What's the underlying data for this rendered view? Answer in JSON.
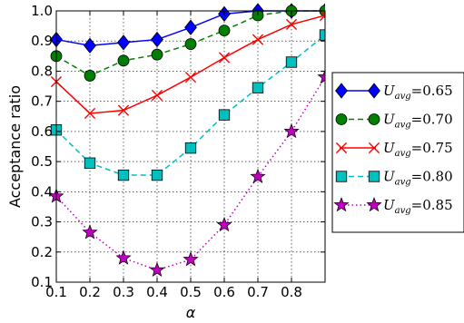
{
  "chart_data": {
    "type": "line",
    "title": "",
    "xlabel": "α",
    "ylabel": "Acceptance ratio",
    "xlim": [
      0.1,
      0.9
    ],
    "ylim": [
      0.1,
      1.0
    ],
    "xticks": [
      "0.1",
      "0.2",
      "0.3",
      "0.4",
      "0.5",
      "0.6",
      "0.7",
      "0.8"
    ],
    "yticks": [
      "0.1",
      "0.2",
      "0.3",
      "0.4",
      "0.5",
      "0.6",
      "0.7",
      "0.8",
      "0.9",
      "1.0"
    ],
    "grid": true,
    "legend_position": "outside-right",
    "x": [
      0.1,
      0.2,
      0.3,
      0.4,
      0.5,
      0.6,
      0.7,
      0.8,
      0.9
    ],
    "series": [
      {
        "name": "U_avg=0.65",
        "legend_base": "U",
        "legend_sub": "avg",
        "legend_value": "=0.65",
        "color": "#0000ff",
        "marker": "diamond",
        "dash": "solid",
        "values": [
          0.905,
          0.885,
          0.895,
          0.905,
          0.945,
          0.99,
          1.0,
          1.0,
          1.0
        ]
      },
      {
        "name": "U_avg=0.70",
        "legend_base": "U",
        "legend_sub": "avg",
        "legend_value": "=0.70",
        "color": "#008000",
        "marker": "circle",
        "dash": "dashed",
        "values": [
          0.85,
          0.785,
          0.835,
          0.855,
          0.89,
          0.935,
          0.985,
          1.0,
          1.0
        ]
      },
      {
        "name": "U_avg=0.75",
        "legend_base": "U",
        "legend_sub": "avg",
        "legend_value": "=0.75",
        "color": "#ff0000",
        "marker": "x",
        "dash": "solid",
        "values": [
          0.765,
          0.66,
          0.67,
          0.72,
          0.78,
          0.845,
          0.905,
          0.955,
          0.985
        ]
      },
      {
        "name": "U_avg=0.80",
        "legend_base": "U",
        "legend_sub": "avg",
        "legend_value": "=0.80",
        "color": "#00bfbf",
        "marker": "square",
        "dash": "dashed",
        "values": [
          0.605,
          0.495,
          0.455,
          0.455,
          0.545,
          0.655,
          0.745,
          0.83,
          0.92
        ]
      },
      {
        "name": "U_avg=0.85",
        "legend_base": "U",
        "legend_sub": "avg",
        "legend_value": "=0.85",
        "color": "#bf00bf",
        "marker": "star",
        "dash": "dotted",
        "values": [
          0.385,
          0.265,
          0.18,
          0.14,
          0.175,
          0.29,
          0.45,
          0.6,
          0.78
        ]
      }
    ]
  }
}
